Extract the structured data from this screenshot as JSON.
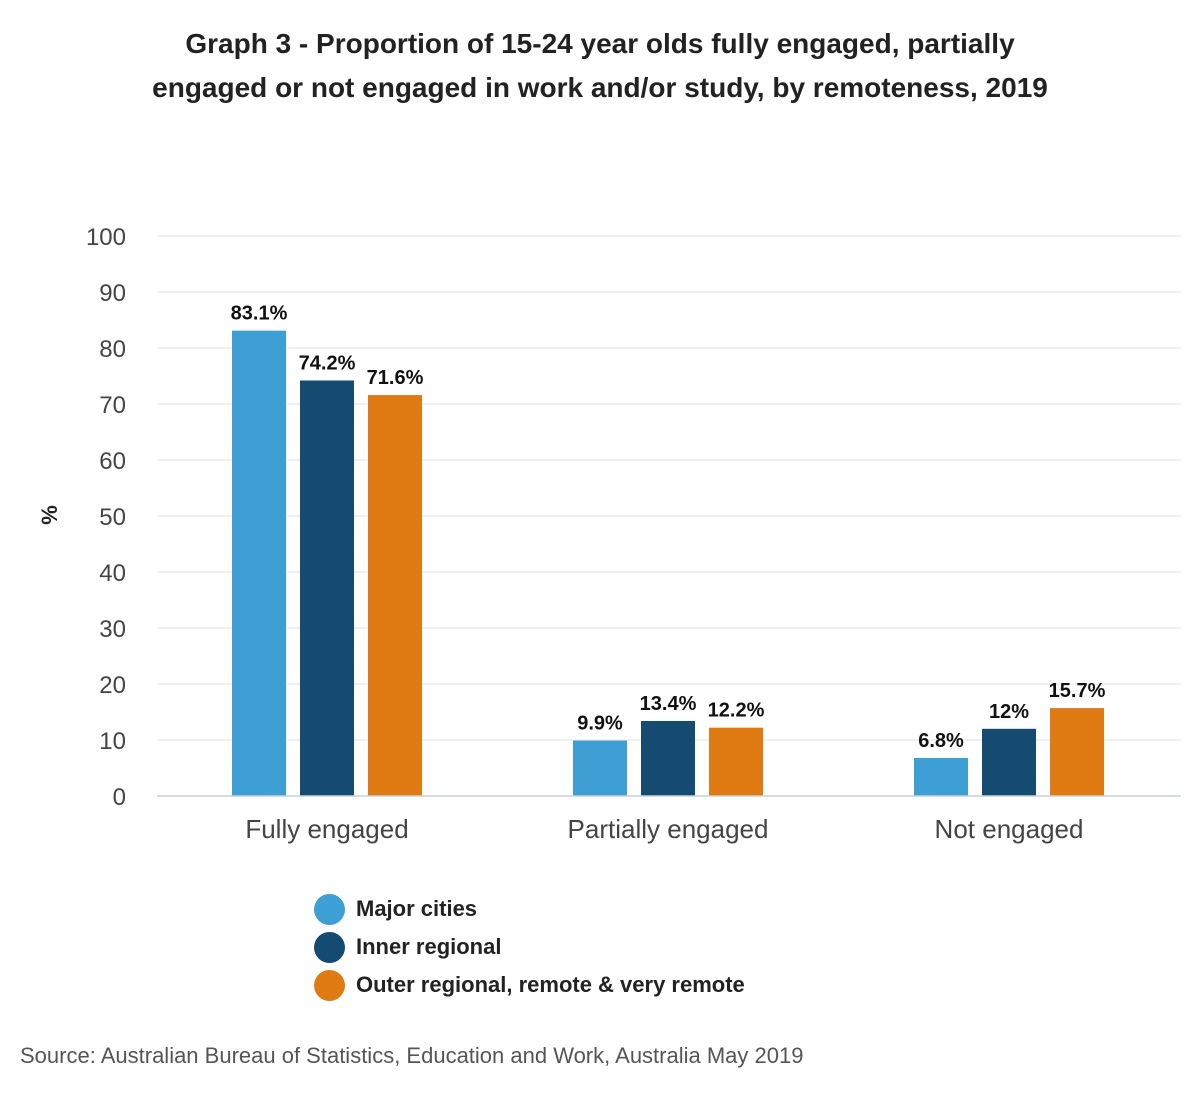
{
  "chart_data": {
    "type": "bar",
    "title": "Graph 3 - Proportion of 15-24 year olds fully engaged, partially engaged or not engaged in work and/or study, by remoteness, 2019",
    "ylabel": "%",
    "xlabel": "",
    "categories": [
      "Fully engaged",
      "Partially engaged",
      "Not engaged"
    ],
    "series": [
      {
        "name": "Major cities",
        "values": [
          83.1,
          9.9,
          6.8
        ],
        "labels": [
          "83.1%",
          "9.9%",
          "6.8%"
        ],
        "color": "#3d9fd3"
      },
      {
        "name": "Inner regional",
        "values": [
          74.2,
          13.4,
          12
        ],
        "labels": [
          "74.2%",
          "13.4%",
          "12%"
        ],
        "color": "#154b70"
      },
      {
        "name": "Outer regional, remote & very remote",
        "values": [
          71.6,
          12.2,
          15.7
        ],
        "labels": [
          "71.6%",
          "12.2%",
          "15.7%"
        ],
        "color": "#e07b14"
      }
    ],
    "ylim": [
      0,
      100
    ],
    "yticks": [
      "0",
      "10",
      "20",
      "30",
      "40",
      "50",
      "60",
      "70",
      "80",
      "90",
      "100"
    ],
    "grid": true,
    "legend_position": "bottom"
  },
  "source": "Source: Australian Bureau of Statistics, Education and Work, Australia May 2019"
}
